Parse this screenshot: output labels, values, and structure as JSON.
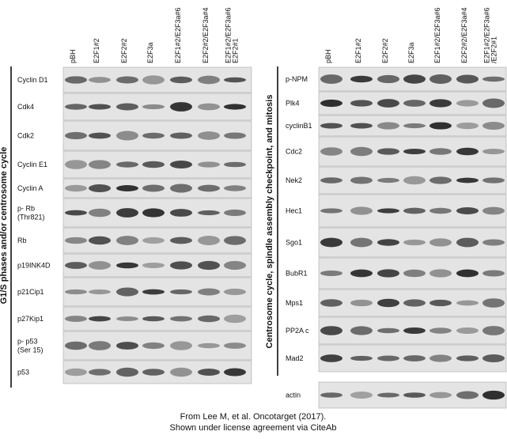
{
  "left_panel": {
    "side_label": "G1/S phases and/or centrosome cycle",
    "lanes": [
      [
        "pBH"
      ],
      [
        "E2F1#2"
      ],
      [
        "E2F2#2"
      ],
      [
        "E2F3a"
      ],
      [
        "E2F1#2/E2F3a#6"
      ],
      [
        "E2F2#2/E2F3a#4"
      ],
      [
        "E2F1#2/E2F3a#6",
        "E2F2#1"
      ]
    ],
    "rows": [
      [
        "Cyclin D1"
      ],
      [
        "Cdk4"
      ],
      [
        "Cdk2"
      ],
      [
        "Cyclin E1"
      ],
      [
        "Cyclin A"
      ],
      [
        "p- Rb",
        "(Thr821)"
      ],
      [
        "Rb"
      ],
      [
        "p19INK4D"
      ],
      [
        "p21Cip1"
      ],
      [
        "p27Kip1"
      ],
      [
        "p- p53",
        "(Ser 15)"
      ],
      [
        "p53"
      ]
    ]
  },
  "right_panel": {
    "side_label": "Centrosome cycle, spindle assembly checkpoint, and mitosis",
    "lanes": [
      [
        "pBH"
      ],
      [
        "E2F1#2"
      ],
      [
        "E2F2#2"
      ],
      [
        "E2F3a"
      ],
      [
        "E2F1#2/E2F3a#6"
      ],
      [
        "E2F2#2/E2F3a#4"
      ],
      [
        "E2F1#2/E2F3a#6",
        "/E2F2#1"
      ]
    ],
    "rows": [
      [
        "p-NPM"
      ],
      [
        "Plk4"
      ],
      [
        "cyclinB1"
      ],
      [
        "Cdc2"
      ],
      [
        "Nek2"
      ],
      [
        "Hec1"
      ],
      [
        "Sgo1"
      ],
      [
        "BubR1"
      ],
      [
        "Mps1"
      ],
      [
        "PP2A c"
      ],
      [
        "Mad2"
      ],
      [
        "actin"
      ]
    ]
  },
  "caption": [
    "From Lee M, et al. Oncotarget (2017).",
    "Shown under license agreement via CiteAb"
  ]
}
